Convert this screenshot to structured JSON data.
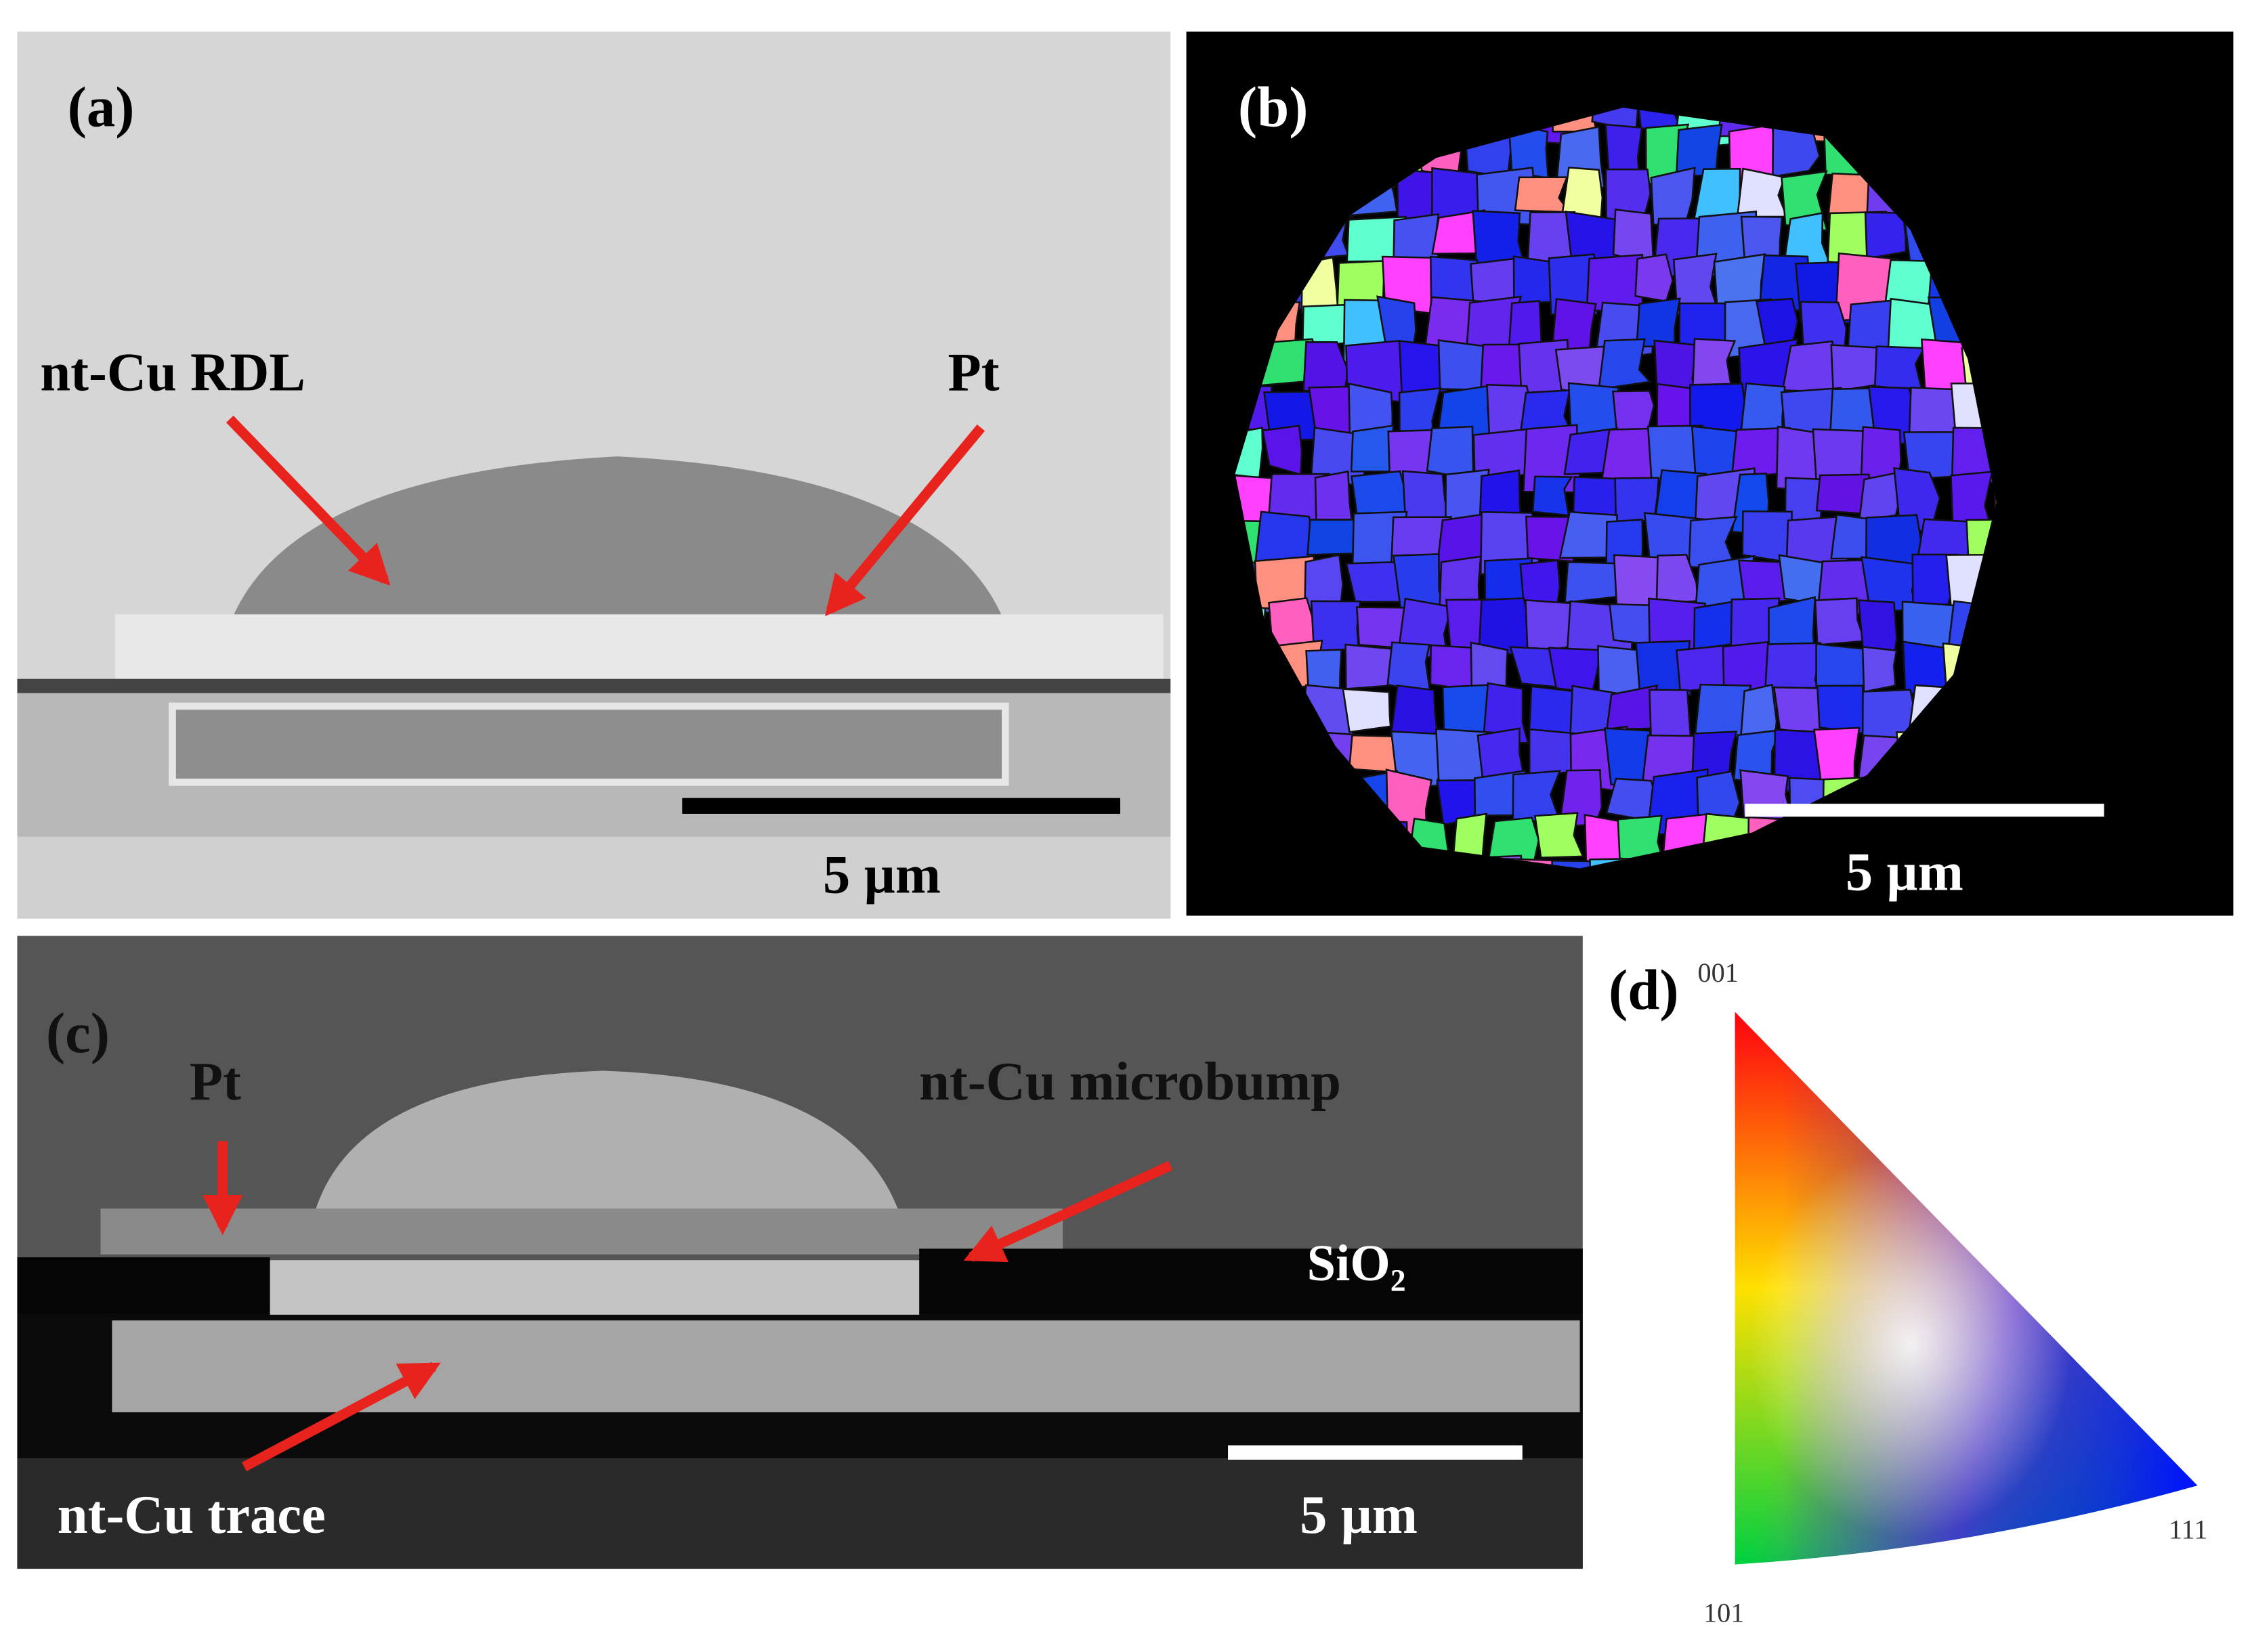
{
  "panels": {
    "a": {
      "label": "(a)",
      "annotations": [
        "nt-Cu RDL",
        "Pt"
      ],
      "scale_bar": "5 µm"
    },
    "b": {
      "label": "(b)",
      "scale_bar": "5 µm"
    },
    "c": {
      "label": "(c)",
      "annotations": [
        "Pt",
        "nt-Cu microbump",
        "SiO₂",
        "nt-Cu trace"
      ],
      "scale_bar": "5 µm"
    },
    "d": {
      "label": "(d)",
      "corners": [
        "001",
        "101",
        "111"
      ]
    }
  }
}
